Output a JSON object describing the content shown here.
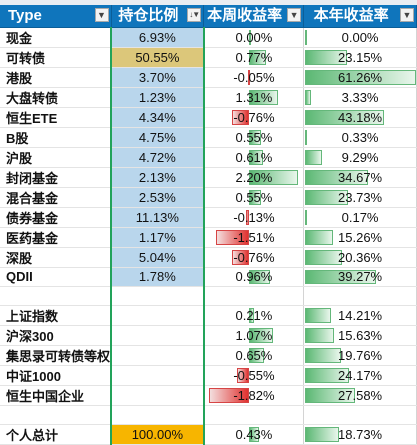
{
  "headers": {
    "type": "Type",
    "hold": "持仓比例",
    "week": "本周收益率",
    "year": "本年收益率"
  },
  "rows": [
    {
      "name": "现金",
      "hold": "6.93%",
      "week": "0.00%",
      "week_v": 0.0,
      "year": "0.00%",
      "year_v": 0.0,
      "hold_style": "blue"
    },
    {
      "name": "可转债",
      "hold": "50.55%",
      "week": "0.77%",
      "week_v": 0.77,
      "year": "23.15%",
      "year_v": 23.15,
      "hold_style": "gold"
    },
    {
      "name": "港股",
      "hold": "3.70%",
      "week": "-0.05%",
      "week_v": -0.05,
      "year": "61.26%",
      "year_v": 61.26,
      "hold_style": "blue"
    },
    {
      "name": "大盘转债",
      "hold": "1.23%",
      "week": "1.31%",
      "week_v": 1.31,
      "year": "3.33%",
      "year_v": 3.33,
      "hold_style": "blue"
    },
    {
      "name": "恒生ETE",
      "hold": "4.34%",
      "week": "-0.76%",
      "week_v": -0.76,
      "year": "43.18%",
      "year_v": 43.18,
      "hold_style": "blue"
    },
    {
      "name": "B股",
      "hold": "4.75%",
      "week": "0.55%",
      "week_v": 0.55,
      "year": "0.33%",
      "year_v": 0.33,
      "hold_style": "blue"
    },
    {
      "name": "沪股",
      "hold": "4.72%",
      "week": "0.61%",
      "week_v": 0.61,
      "year": "9.29%",
      "year_v": 9.29,
      "hold_style": "blue"
    },
    {
      "name": "封闭基金",
      "hold": "2.13%",
      "week": "2.20%",
      "week_v": 2.2,
      "year": "34.67%",
      "year_v": 34.67,
      "hold_style": "blue"
    },
    {
      "name": "混合基金",
      "hold": "2.53%",
      "week": "0.55%",
      "week_v": 0.55,
      "year": "23.73%",
      "year_v": 23.73,
      "hold_style": "blue"
    },
    {
      "name": "债券基金",
      "hold": "11.13%",
      "week": "-0.13%",
      "week_v": -0.13,
      "year": "0.17%",
      "year_v": 0.17,
      "hold_style": "blue"
    },
    {
      "name": "医药基金",
      "hold": "1.17%",
      "week": "-1.51%",
      "week_v": -1.51,
      "year": "15.26%",
      "year_v": 15.26,
      "hold_style": "blue"
    },
    {
      "name": "深股",
      "hold": "5.04%",
      "week": "-0.76%",
      "week_v": -0.76,
      "year": "20.36%",
      "year_v": 20.36,
      "hold_style": "blue"
    },
    {
      "name": "QDII",
      "hold": "1.78%",
      "week": "0.96%",
      "week_v": 0.96,
      "year": "39.27%",
      "year_v": 39.27,
      "hold_style": "blue"
    },
    {
      "name": "",
      "hold": "",
      "week": "",
      "week_v": null,
      "year": "",
      "year_v": null,
      "hold_style": "plain"
    },
    {
      "name": "上证指数",
      "hold": "",
      "week": "0.21%",
      "week_v": 0.21,
      "year": "14.21%",
      "year_v": 14.21,
      "hold_style": "plain"
    },
    {
      "name": "沪深300",
      "hold": "",
      "week": "1.07%",
      "week_v": 1.07,
      "year": "15.63%",
      "year_v": 15.63,
      "hold_style": "plain"
    },
    {
      "name": "集思录可转债等权",
      "hold": "",
      "week": "0.65%",
      "week_v": 0.65,
      "year": "19.76%",
      "year_v": 19.76,
      "hold_style": "plain"
    },
    {
      "name": "中证1000",
      "hold": "",
      "week": "-0.55%",
      "week_v": -0.55,
      "year": "24.17%",
      "year_v": 24.17,
      "hold_style": "plain"
    },
    {
      "name": "恒生中国企业",
      "hold": "",
      "week": "-1.82%",
      "week_v": -1.82,
      "year": "27.58%",
      "year_v": 27.58,
      "hold_style": "plain"
    },
    {
      "name": "",
      "hold": "",
      "week": "",
      "week_v": null,
      "year": "",
      "year_v": null,
      "hold_style": "plain"
    },
    {
      "name": "个人总计",
      "hold": "100.00%",
      "week": "0.43%",
      "week_v": 0.43,
      "year": "18.73%",
      "year_v": 18.73,
      "hold_style": "orange"
    }
  ],
  "scales": {
    "week_min": -2.0,
    "week_max": 2.5,
    "year_max": 65
  },
  "colors": {
    "header_bg": "#0f75bc",
    "hold_blue": "#b9d6ec",
    "hold_gold": "#dcc77a",
    "hold_total": "#f7b500",
    "bar_pos": "#5bb873",
    "bar_neg": "#e0312f"
  },
  "icons": {
    "filter": "filter-dropdown-icon",
    "sort": "sorted-filter-icon"
  }
}
